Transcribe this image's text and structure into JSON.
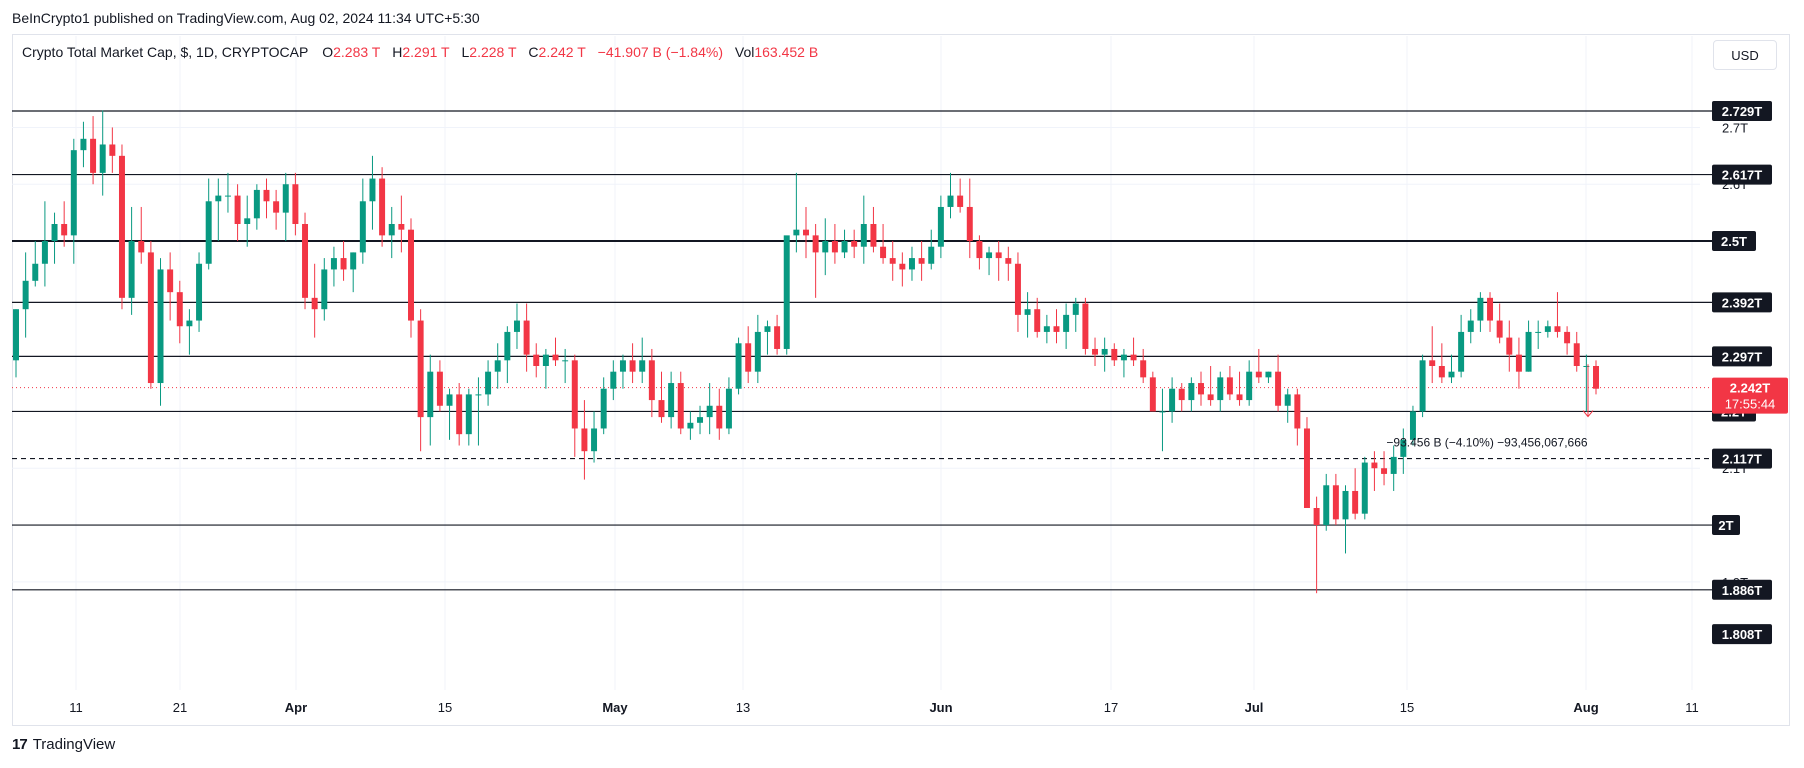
{
  "publisher": "BeInCrypto1 published on TradingView.com, Aug 02, 2024 11:34 UTC+5:30",
  "legend": {
    "symbol": "Crypto Total Market Cap, $, 1D, CRYPTOCAP",
    "o_label": "O",
    "o_value": "2.283 T",
    "h_label": "H",
    "h_value": "2.291 T",
    "l_label": "L",
    "l_value": "2.228 T",
    "c_label": "C",
    "c_value": "2.242 T",
    "change": "−41.907 B (−1.84%)",
    "vol_label": "Vol",
    "vol_value": "163.452 B"
  },
  "currency_button": "USD",
  "footer": {
    "brand": "TradingView",
    "logo": "17"
  },
  "colors": {
    "up": "#089981",
    "down": "#f23645",
    "line": "#131722",
    "grid": "#f0f3fa"
  },
  "chart_data": {
    "type": "candlestick",
    "y_scale": {
      "min": 1.78,
      "max": 2.78,
      "unit": "T"
    },
    "horizontal_levels": [
      {
        "value": 2.729,
        "label": "2.729T",
        "style": "solid"
      },
      {
        "value": 2.617,
        "label": "2.617T",
        "style": "solid"
      },
      {
        "value": 2.5,
        "label": "2.5T",
        "style": "solid-bold"
      },
      {
        "value": 2.392,
        "label": "2.392T",
        "style": "solid"
      },
      {
        "value": 2.297,
        "label": "2.297T",
        "style": "solid"
      },
      {
        "value": 2.2,
        "label": "2.2T",
        "style": "solid"
      },
      {
        "value": 2.117,
        "label": "2.117T",
        "style": "dashed"
      },
      {
        "value": 2.0,
        "label": "2T",
        "style": "solid"
      },
      {
        "value": 1.886,
        "label": "1.886T",
        "style": "solid"
      }
    ],
    "axis_ticks": [
      {
        "value": 2.7,
        "label": "2.7T"
      },
      {
        "value": 2.6,
        "label": "2.6T"
      },
      {
        "value": 2.1,
        "label": "2.1T"
      },
      {
        "value": 1.9,
        "label": "1.9T"
      }
    ],
    "extra_labels": [
      {
        "value": 1.808,
        "label": "1.808T"
      }
    ],
    "current_price": {
      "value": 2.242,
      "label": "2.242T",
      "countdown": "17:55:44"
    },
    "x_labels": [
      "11",
      "21",
      "Apr",
      "15",
      "May",
      "13",
      "Jun",
      "17",
      "Jul",
      "15",
      "Aug",
      "11"
    ],
    "measurement": {
      "from": 2.283,
      "to": 2.191,
      "label": "−93.456 B (−4.10%) −93,456,067,666"
    },
    "candles": [
      {
        "o": 2.29,
        "h": 2.38,
        "l": 2.26,
        "c": 2.38
      },
      {
        "o": 2.38,
        "h": 2.48,
        "l": 2.33,
        "c": 2.43
      },
      {
        "o": 2.43,
        "h": 2.5,
        "l": 2.42,
        "c": 2.46
      },
      {
        "o": 2.46,
        "h": 2.57,
        "l": 2.42,
        "c": 2.5
      },
      {
        "o": 2.5,
        "h": 2.55,
        "l": 2.46,
        "c": 2.53
      },
      {
        "o": 2.53,
        "h": 2.57,
        "l": 2.49,
        "c": 2.51
      },
      {
        "o": 2.51,
        "h": 2.68,
        "l": 2.46,
        "c": 2.66
      },
      {
        "o": 2.66,
        "h": 2.71,
        "l": 2.63,
        "c": 2.68
      },
      {
        "o": 2.68,
        "h": 2.72,
        "l": 2.6,
        "c": 2.62
      },
      {
        "o": 2.62,
        "h": 2.73,
        "l": 2.58,
        "c": 2.67
      },
      {
        "o": 2.67,
        "h": 2.7,
        "l": 2.62,
        "c": 2.65
      },
      {
        "o": 2.65,
        "h": 2.67,
        "l": 2.38,
        "c": 2.4
      },
      {
        "o": 2.4,
        "h": 2.56,
        "l": 2.37,
        "c": 2.5
      },
      {
        "o": 2.5,
        "h": 2.56,
        "l": 2.46,
        "c": 2.48
      },
      {
        "o": 2.48,
        "h": 2.5,
        "l": 2.24,
        "c": 2.25
      },
      {
        "o": 2.25,
        "h": 2.47,
        "l": 2.21,
        "c": 2.45
      },
      {
        "o": 2.45,
        "h": 2.48,
        "l": 2.36,
        "c": 2.41
      },
      {
        "o": 2.41,
        "h": 2.43,
        "l": 2.32,
        "c": 2.35
      },
      {
        "o": 2.35,
        "h": 2.38,
        "l": 2.3,
        "c": 2.36
      },
      {
        "o": 2.36,
        "h": 2.48,
        "l": 2.34,
        "c": 2.46
      },
      {
        "o": 2.46,
        "h": 2.61,
        "l": 2.45,
        "c": 2.57
      },
      {
        "o": 2.57,
        "h": 2.61,
        "l": 2.5,
        "c": 2.58
      },
      {
        "o": 2.58,
        "h": 2.62,
        "l": 2.55,
        "c": 2.58
      },
      {
        "o": 2.58,
        "h": 2.6,
        "l": 2.5,
        "c": 2.53
      },
      {
        "o": 2.53,
        "h": 2.58,
        "l": 2.49,
        "c": 2.54
      },
      {
        "o": 2.54,
        "h": 2.6,
        "l": 2.52,
        "c": 2.59
      },
      {
        "o": 2.59,
        "h": 2.61,
        "l": 2.54,
        "c": 2.57
      },
      {
        "o": 2.57,
        "h": 2.59,
        "l": 2.52,
        "c": 2.55
      },
      {
        "o": 2.55,
        "h": 2.62,
        "l": 2.5,
        "c": 2.6
      },
      {
        "o": 2.6,
        "h": 2.62,
        "l": 2.51,
        "c": 2.53
      },
      {
        "o": 2.53,
        "h": 2.55,
        "l": 2.38,
        "c": 2.4
      },
      {
        "o": 2.4,
        "h": 2.46,
        "l": 2.33,
        "c": 2.38
      },
      {
        "o": 2.38,
        "h": 2.47,
        "l": 2.36,
        "c": 2.45
      },
      {
        "o": 2.45,
        "h": 2.49,
        "l": 2.42,
        "c": 2.47
      },
      {
        "o": 2.47,
        "h": 2.5,
        "l": 2.43,
        "c": 2.45
      },
      {
        "o": 2.45,
        "h": 2.48,
        "l": 2.41,
        "c": 2.48
      },
      {
        "o": 2.48,
        "h": 2.61,
        "l": 2.46,
        "c": 2.57
      },
      {
        "o": 2.57,
        "h": 2.65,
        "l": 2.52,
        "c": 2.61
      },
      {
        "o": 2.61,
        "h": 2.63,
        "l": 2.49,
        "c": 2.51
      },
      {
        "o": 2.51,
        "h": 2.56,
        "l": 2.47,
        "c": 2.53
      },
      {
        "o": 2.53,
        "h": 2.58,
        "l": 2.48,
        "c": 2.52
      },
      {
        "o": 2.52,
        "h": 2.54,
        "l": 2.33,
        "c": 2.36
      },
      {
        "o": 2.36,
        "h": 2.38,
        "l": 2.13,
        "c": 2.19
      },
      {
        "o": 2.19,
        "h": 2.3,
        "l": 2.14,
        "c": 2.27
      },
      {
        "o": 2.27,
        "h": 2.29,
        "l": 2.2,
        "c": 2.21
      },
      {
        "o": 2.21,
        "h": 2.24,
        "l": 2.15,
        "c": 2.23
      },
      {
        "o": 2.23,
        "h": 2.25,
        "l": 2.14,
        "c": 2.16
      },
      {
        "o": 2.16,
        "h": 2.24,
        "l": 2.14,
        "c": 2.23
      },
      {
        "o": 2.23,
        "h": 2.26,
        "l": 2.14,
        "c": 2.23
      },
      {
        "o": 2.23,
        "h": 2.29,
        "l": 2.21,
        "c": 2.27
      },
      {
        "o": 2.27,
        "h": 2.32,
        "l": 2.24,
        "c": 2.29
      },
      {
        "o": 2.29,
        "h": 2.35,
        "l": 2.25,
        "c": 2.34
      },
      {
        "o": 2.34,
        "h": 2.39,
        "l": 2.31,
        "c": 2.36
      },
      {
        "o": 2.36,
        "h": 2.39,
        "l": 2.27,
        "c": 2.3
      },
      {
        "o": 2.3,
        "h": 2.32,
        "l": 2.26,
        "c": 2.28
      },
      {
        "o": 2.28,
        "h": 2.31,
        "l": 2.24,
        "c": 2.3
      },
      {
        "o": 2.3,
        "h": 2.33,
        "l": 2.28,
        "c": 2.29
      },
      {
        "o": 2.29,
        "h": 2.31,
        "l": 2.25,
        "c": 2.29
      },
      {
        "o": 2.29,
        "h": 2.3,
        "l": 2.12,
        "c": 2.17
      },
      {
        "o": 2.17,
        "h": 2.22,
        "l": 2.08,
        "c": 2.13
      },
      {
        "o": 2.13,
        "h": 2.2,
        "l": 2.11,
        "c": 2.17
      },
      {
        "o": 2.17,
        "h": 2.26,
        "l": 2.16,
        "c": 2.24
      },
      {
        "o": 2.24,
        "h": 2.29,
        "l": 2.22,
        "c": 2.27
      },
      {
        "o": 2.27,
        "h": 2.3,
        "l": 2.24,
        "c": 2.29
      },
      {
        "o": 2.29,
        "h": 2.32,
        "l": 2.25,
        "c": 2.27
      },
      {
        "o": 2.27,
        "h": 2.33,
        "l": 2.25,
        "c": 2.29
      },
      {
        "o": 2.29,
        "h": 2.31,
        "l": 2.19,
        "c": 2.22
      },
      {
        "o": 2.22,
        "h": 2.27,
        "l": 2.18,
        "c": 2.19
      },
      {
        "o": 2.19,
        "h": 2.27,
        "l": 2.17,
        "c": 2.25
      },
      {
        "o": 2.25,
        "h": 2.27,
        "l": 2.16,
        "c": 2.17
      },
      {
        "o": 2.17,
        "h": 2.2,
        "l": 2.15,
        "c": 2.18
      },
      {
        "o": 2.18,
        "h": 2.21,
        "l": 2.16,
        "c": 2.19
      },
      {
        "o": 2.19,
        "h": 2.25,
        "l": 2.16,
        "c": 2.21
      },
      {
        "o": 2.21,
        "h": 2.24,
        "l": 2.15,
        "c": 2.17
      },
      {
        "o": 2.17,
        "h": 2.26,
        "l": 2.16,
        "c": 2.24
      },
      {
        "o": 2.24,
        "h": 2.33,
        "l": 2.23,
        "c": 2.32
      },
      {
        "o": 2.32,
        "h": 2.35,
        "l": 2.25,
        "c": 2.27
      },
      {
        "o": 2.27,
        "h": 2.37,
        "l": 2.25,
        "c": 2.34
      },
      {
        "o": 2.34,
        "h": 2.36,
        "l": 2.3,
        "c": 2.35
      },
      {
        "o": 2.35,
        "h": 2.37,
        "l": 2.3,
        "c": 2.31
      },
      {
        "o": 2.31,
        "h": 2.5,
        "l": 2.3,
        "c": 2.51
      },
      {
        "o": 2.51,
        "h": 2.62,
        "l": 2.48,
        "c": 2.52
      },
      {
        "o": 2.52,
        "h": 2.56,
        "l": 2.47,
        "c": 2.51
      },
      {
        "o": 2.51,
        "h": 2.53,
        "l": 2.4,
        "c": 2.48
      },
      {
        "o": 2.48,
        "h": 2.54,
        "l": 2.44,
        "c": 2.5
      },
      {
        "o": 2.5,
        "h": 2.53,
        "l": 2.46,
        "c": 2.48
      },
      {
        "o": 2.48,
        "h": 2.52,
        "l": 2.47,
        "c": 2.5
      },
      {
        "o": 2.5,
        "h": 2.52,
        "l": 2.47,
        "c": 2.49
      },
      {
        "o": 2.49,
        "h": 2.58,
        "l": 2.46,
        "c": 2.53
      },
      {
        "o": 2.53,
        "h": 2.56,
        "l": 2.48,
        "c": 2.49
      },
      {
        "o": 2.49,
        "h": 2.53,
        "l": 2.46,
        "c": 2.47
      },
      {
        "o": 2.47,
        "h": 2.5,
        "l": 2.43,
        "c": 2.46
      },
      {
        "o": 2.46,
        "h": 2.48,
        "l": 2.42,
        "c": 2.45
      },
      {
        "o": 2.45,
        "h": 2.49,
        "l": 2.43,
        "c": 2.47
      },
      {
        "o": 2.47,
        "h": 2.5,
        "l": 2.43,
        "c": 2.46
      },
      {
        "o": 2.46,
        "h": 2.52,
        "l": 2.45,
        "c": 2.49
      },
      {
        "o": 2.49,
        "h": 2.58,
        "l": 2.47,
        "c": 2.56
      },
      {
        "o": 2.56,
        "h": 2.62,
        "l": 2.54,
        "c": 2.58
      },
      {
        "o": 2.58,
        "h": 2.61,
        "l": 2.55,
        "c": 2.56
      },
      {
        "o": 2.56,
        "h": 2.61,
        "l": 2.47,
        "c": 2.5
      },
      {
        "o": 2.5,
        "h": 2.51,
        "l": 2.45,
        "c": 2.47
      },
      {
        "o": 2.47,
        "h": 2.49,
        "l": 2.44,
        "c": 2.48
      },
      {
        "o": 2.48,
        "h": 2.5,
        "l": 2.43,
        "c": 2.47
      },
      {
        "o": 2.47,
        "h": 2.49,
        "l": 2.43,
        "c": 2.46
      },
      {
        "o": 2.46,
        "h": 2.48,
        "l": 2.34,
        "c": 2.37
      },
      {
        "o": 2.37,
        "h": 2.41,
        "l": 2.33,
        "c": 2.38
      },
      {
        "o": 2.38,
        "h": 2.4,
        "l": 2.33,
        "c": 2.34
      },
      {
        "o": 2.34,
        "h": 2.37,
        "l": 2.32,
        "c": 2.35
      },
      {
        "o": 2.35,
        "h": 2.38,
        "l": 2.32,
        "c": 2.34
      },
      {
        "o": 2.34,
        "h": 2.39,
        "l": 2.31,
        "c": 2.37
      },
      {
        "o": 2.37,
        "h": 2.4,
        "l": 2.34,
        "c": 2.39
      },
      {
        "o": 2.39,
        "h": 2.4,
        "l": 2.3,
        "c": 2.31
      },
      {
        "o": 2.31,
        "h": 2.33,
        "l": 2.28,
        "c": 2.3
      },
      {
        "o": 2.3,
        "h": 2.33,
        "l": 2.27,
        "c": 2.31
      },
      {
        "o": 2.31,
        "h": 2.32,
        "l": 2.28,
        "c": 2.29
      },
      {
        "o": 2.29,
        "h": 2.31,
        "l": 2.26,
        "c": 2.3
      },
      {
        "o": 2.3,
        "h": 2.33,
        "l": 2.28,
        "c": 2.29
      },
      {
        "o": 2.29,
        "h": 2.31,
        "l": 2.25,
        "c": 2.26
      },
      {
        "o": 2.26,
        "h": 2.27,
        "l": 2.2,
        "c": 2.2
      },
      {
        "o": 2.2,
        "h": 2.24,
        "l": 2.13,
        "c": 2.2
      },
      {
        "o": 2.2,
        "h": 2.26,
        "l": 2.18,
        "c": 2.24
      },
      {
        "o": 2.24,
        "h": 2.25,
        "l": 2.2,
        "c": 2.22
      },
      {
        "o": 2.22,
        "h": 2.26,
        "l": 2.2,
        "c": 2.25
      },
      {
        "o": 2.25,
        "h": 2.27,
        "l": 2.21,
        "c": 2.23
      },
      {
        "o": 2.23,
        "h": 2.28,
        "l": 2.21,
        "c": 2.22
      },
      {
        "o": 2.22,
        "h": 2.27,
        "l": 2.2,
        "c": 2.26
      },
      {
        "o": 2.26,
        "h": 2.28,
        "l": 2.22,
        "c": 2.23
      },
      {
        "o": 2.23,
        "h": 2.27,
        "l": 2.21,
        "c": 2.22
      },
      {
        "o": 2.22,
        "h": 2.29,
        "l": 2.21,
        "c": 2.27
      },
      {
        "o": 2.27,
        "h": 2.31,
        "l": 2.25,
        "c": 2.26
      },
      {
        "o": 2.26,
        "h": 2.27,
        "l": 2.25,
        "c": 2.27
      },
      {
        "o": 2.27,
        "h": 2.3,
        "l": 2.2,
        "c": 2.21
      },
      {
        "o": 2.21,
        "h": 2.24,
        "l": 2.18,
        "c": 2.23
      },
      {
        "o": 2.23,
        "h": 2.24,
        "l": 2.14,
        "c": 2.17
      },
      {
        "o": 2.17,
        "h": 2.19,
        "l": 2.03,
        "c": 2.03
      },
      {
        "o": 2.03,
        "h": 2.05,
        "l": 1.88,
        "c": 2.0
      },
      {
        "o": 2.0,
        "h": 2.09,
        "l": 1.99,
        "c": 2.07
      },
      {
        "o": 2.07,
        "h": 2.09,
        "l": 2.0,
        "c": 2.01
      },
      {
        "o": 2.01,
        "h": 2.07,
        "l": 1.95,
        "c": 2.06
      },
      {
        "o": 2.06,
        "h": 2.1,
        "l": 2.01,
        "c": 2.02
      },
      {
        "o": 2.02,
        "h": 2.12,
        "l": 2.01,
        "c": 2.11
      },
      {
        "o": 2.11,
        "h": 2.13,
        "l": 2.06,
        "c": 2.1
      },
      {
        "o": 2.1,
        "h": 2.13,
        "l": 2.07,
        "c": 2.09
      },
      {
        "o": 2.09,
        "h": 2.14,
        "l": 2.06,
        "c": 2.12
      },
      {
        "o": 2.12,
        "h": 2.17,
        "l": 2.09,
        "c": 2.15
      },
      {
        "o": 2.15,
        "h": 2.21,
        "l": 2.14,
        "c": 2.2
      },
      {
        "o": 2.2,
        "h": 2.3,
        "l": 2.19,
        "c": 2.29
      },
      {
        "o": 2.29,
        "h": 2.35,
        "l": 2.25,
        "c": 2.28
      },
      {
        "o": 2.28,
        "h": 2.32,
        "l": 2.25,
        "c": 2.26
      },
      {
        "o": 2.26,
        "h": 2.3,
        "l": 2.25,
        "c": 2.27
      },
      {
        "o": 2.27,
        "h": 2.37,
        "l": 2.26,
        "c": 2.34
      },
      {
        "o": 2.34,
        "h": 2.38,
        "l": 2.32,
        "c": 2.36
      },
      {
        "o": 2.36,
        "h": 2.41,
        "l": 2.34,
        "c": 2.4
      },
      {
        "o": 2.4,
        "h": 2.41,
        "l": 2.34,
        "c": 2.36
      },
      {
        "o": 2.36,
        "h": 2.39,
        "l": 2.32,
        "c": 2.33
      },
      {
        "o": 2.33,
        "h": 2.36,
        "l": 2.27,
        "c": 2.3
      },
      {
        "o": 2.3,
        "h": 2.33,
        "l": 2.24,
        "c": 2.27
      },
      {
        "o": 2.27,
        "h": 2.36,
        "l": 2.27,
        "c": 2.34
      },
      {
        "o": 2.34,
        "h": 2.36,
        "l": 2.31,
        "c": 2.34
      },
      {
        "o": 2.34,
        "h": 2.36,
        "l": 2.33,
        "c": 2.35
      },
      {
        "o": 2.35,
        "h": 2.41,
        "l": 2.33,
        "c": 2.34
      },
      {
        "o": 2.34,
        "h": 2.35,
        "l": 2.3,
        "c": 2.32
      },
      {
        "o": 2.32,
        "h": 2.34,
        "l": 2.27,
        "c": 2.28
      },
      {
        "o": 2.28,
        "h": 2.3,
        "l": 2.2,
        "c": 2.28
      },
      {
        "o": 2.28,
        "h": 2.29,
        "l": 2.23,
        "c": 2.24
      }
    ]
  }
}
